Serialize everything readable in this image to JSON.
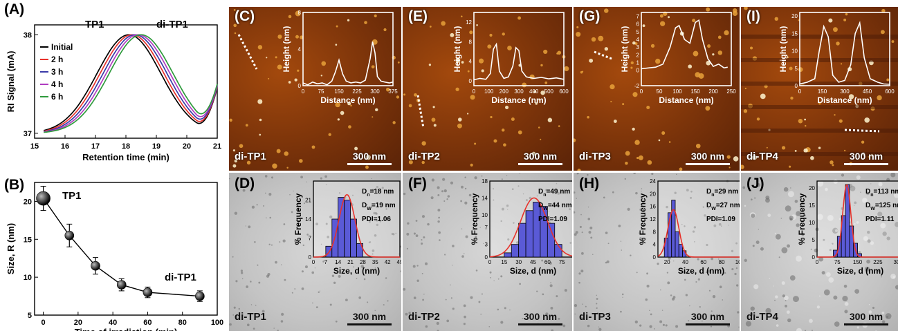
{
  "figure": {
    "panelA": {
      "label": "(A)",
      "title_left": "TP1",
      "title_right": "di-TP1",
      "ylabel": "RI Signal (mA)",
      "xlabel": "Retention time (min)",
      "xticks": [
        "15",
        "16",
        "17",
        "18",
        "19",
        "20",
        "21"
      ],
      "yticks": [
        "37",
        "38"
      ],
      "legend": [
        "Initial",
        "2 h",
        "3 h",
        "4 h",
        "6 h"
      ],
      "colors": [
        "#000000",
        "#e8322b",
        "#3a3aa8",
        "#b03cc0",
        "#2e9a3c"
      ]
    },
    "panelB": {
      "label": "(B)",
      "ylabel": "Size, R (nm)",
      "xlabel": "Time of irradiation (min)",
      "xticks": [
        "0",
        "20",
        "40",
        "60",
        "80",
        "100"
      ],
      "yticks": [
        "5",
        "10",
        "15",
        "20"
      ],
      "annot_top": "TP1",
      "annot_bottom": "di-TP1"
    },
    "afm": [
      {
        "label": "(C)",
        "sample": "di-TP1",
        "scale": "300 nm",
        "xticks": [
          "0",
          "75",
          "150",
          "225",
          "300",
          "375"
        ],
        "yticks": [
          "0",
          "4",
          "8"
        ],
        "xlabel": "Distance (nm)",
        "ylabel": "Height (nm)"
      },
      {
        "label": "(E)",
        "sample": "di-TP2",
        "scale": "300 nm",
        "xticks": [
          "0",
          "100",
          "200",
          "300",
          "400",
          "500",
          "600"
        ],
        "yticks": [
          "0",
          "4",
          "8",
          "12"
        ],
        "xlabel": "Distance (nm)",
        "ylabel": "Height (nm)"
      },
      {
        "label": "(G)",
        "sample": "di-TP3",
        "scale": "300 nm",
        "xticks": [
          "0",
          "50",
          "100",
          "150",
          "200",
          "250"
        ],
        "yticks": [
          "-2",
          "0",
          "1",
          "2",
          "3",
          "4",
          "5",
          "6",
          "7"
        ],
        "xlabel": "Distance (nm)",
        "ylabel": "Height (nm)"
      },
      {
        "label": "(I)",
        "sample": "di-TP4",
        "scale": "300 nm",
        "xticks": [
          "0",
          "150",
          "300",
          "450",
          "600"
        ],
        "yticks": [
          "0",
          "5",
          "10",
          "15",
          "20"
        ],
        "xlabel": "Distance (nm)",
        "ylabel": "Height (nm)"
      }
    ],
    "tem": [
      {
        "label": "(D)",
        "sample": "di-TP1",
        "scale": "300 nm",
        "dn": "D",
        "dn_sub": "n",
        "dn_val": "=18 nm",
        "dw": "D",
        "dw_sub": "W",
        "dw_val": "=19 nm",
        "pdi": "PDI=1.06",
        "xticks": [
          "0",
          "7",
          "14",
          "21",
          "28",
          "35",
          "42",
          "49"
        ],
        "yticks": [
          "0",
          "7",
          "14",
          "21"
        ],
        "xlabel": "Size, d (nm)",
        "ylabel": "% Frequency"
      },
      {
        "label": "(F)",
        "sample": "di-TP2",
        "scale": "300 nm",
        "dn": "D",
        "dn_sub": "n",
        "dn_val": "=49 nm",
        "dw": "D",
        "dw_sub": "W",
        "dw_val": "=44 nm",
        "pdi": "PDI=1.09",
        "xticks": [
          "0",
          "15",
          "30",
          "45",
          "60",
          "75",
          "90"
        ],
        "yticks": [
          "0",
          "3",
          "7",
          "10",
          "14",
          "18"
        ],
        "xlabel": "Size, d (nm)",
        "ylabel": "% Frequency"
      },
      {
        "label": "(H)",
        "sample": "di-TP3",
        "scale": "300 nm",
        "dn": "D",
        "dn_sub": "n",
        "dn_val": "=29 nm",
        "dw": "D",
        "dw_sub": "W",
        "dw_val": "=27 nm",
        "pdi": "PDI=1.09",
        "xticks": [
          "20",
          "40",
          "60",
          "80",
          "100"
        ],
        "yticks": [
          "0",
          "4",
          "8",
          "12",
          "16",
          "20",
          "24"
        ],
        "xlabel": "Size, d (nm)",
        "ylabel": "% Frequency"
      },
      {
        "label": "(J)",
        "sample": "di-TP4",
        "scale": "300 nm",
        "dn": "D",
        "dn_sub": "n",
        "dn_val": "=113 nm",
        "dw": "D",
        "dw_sub": "W",
        "dw_val": "=125 nm",
        "pdi": "PDI=1.11",
        "xticks": [
          "0",
          "75",
          "150",
          "225",
          "300"
        ],
        "yticks": [
          "0",
          "5",
          "10",
          "15",
          "20"
        ],
        "xlabel": "Size, d (nm)",
        "ylabel": "% Frequency"
      }
    ]
  },
  "chart_data": [
    {
      "type": "line",
      "xlabel": "Retention time (min)",
      "ylabel": "RI Signal (mA)",
      "xlim": [
        15,
        21
      ],
      "ylim": [
        36.95,
        38.1
      ],
      "series": [
        {
          "name": "Initial",
          "peak_x": 18.1
        },
        {
          "name": "2 h",
          "peak_x": 18.2
        },
        {
          "name": "3 h",
          "peak_x": 18.3
        },
        {
          "name": "4 h",
          "peak_x": 18.4
        },
        {
          "name": "6 h",
          "peak_x": 18.5
        }
      ]
    },
    {
      "type": "line",
      "xlabel": "Time of irradiation (min)",
      "ylabel": "Size, R (nm)",
      "xlim": [
        -5,
        100
      ],
      "ylim": [
        5,
        22.5
      ],
      "x": [
        0,
        15,
        30,
        45,
        60,
        90
      ],
      "values": [
        20.4,
        15.5,
        11.5,
        9.0,
        8.0,
        7.5
      ],
      "errors": [
        1.6,
        1.5,
        1.1,
        0.8,
        0.7,
        0.7
      ]
    },
    {
      "type": "line",
      "xlabel": "Distance (nm)",
      "ylabel": "Height (nm)",
      "xlim": [
        0,
        375
      ],
      "ylim": [
        0,
        8
      ],
      "x": [
        0,
        20,
        40,
        60,
        80,
        100,
        120,
        135,
        150,
        165,
        180,
        200,
        220,
        240,
        260,
        280,
        290,
        300,
        310,
        325,
        340,
        360,
        375
      ],
      "values": [
        0.3,
        0.1,
        0.4,
        0.2,
        0.3,
        0.1,
        0.5,
        1.5,
        2.8,
        1.3,
        0.5,
        0.3,
        0.4,
        0.3,
        0.6,
        3.0,
        4.8,
        3.6,
        1.0,
        0.5,
        0.4,
        0.3,
        0.4
      ]
    },
    {
      "type": "line",
      "xlabel": "Distance (nm)",
      "ylabel": "Height (nm)",
      "xlim": [
        0,
        600
      ],
      "ylim": [
        -1,
        14
      ],
      "x": [
        0,
        40,
        80,
        110,
        130,
        150,
        170,
        200,
        230,
        260,
        280,
        300,
        320,
        350,
        400,
        450,
        500,
        550,
        600
      ],
      "values": [
        0.2,
        0.5,
        0.3,
        1.5,
        6.5,
        7.5,
        2.0,
        0.5,
        0.8,
        3.0,
        6.8,
        6.2,
        2.0,
        0.8,
        0.5,
        0.7,
        0.4,
        0.6,
        0.3
      ]
    },
    {
      "type": "line",
      "xlabel": "Distance (nm)",
      "ylabel": "Height (nm)",
      "xlim": [
        0,
        250
      ],
      "ylim": [
        -2,
        7.5
      ],
      "x": [
        0,
        20,
        40,
        60,
        80,
        95,
        105,
        120,
        135,
        150,
        160,
        170,
        185,
        200,
        215,
        230,
        240
      ],
      "values": [
        0.2,
        0.3,
        0.4,
        0.8,
        3.0,
        5.5,
        5.8,
        4.0,
        3.5,
        6.2,
        6.5,
        4.0,
        1.5,
        0.5,
        0.8,
        0.3,
        0.4
      ]
    },
    {
      "type": "line",
      "xlabel": "Distance (nm)",
      "ylabel": "Height (nm)",
      "xlim": [
        0,
        600
      ],
      "ylim": [
        0,
        21
      ],
      "x": [
        0,
        50,
        100,
        130,
        160,
        190,
        220,
        260,
        300,
        340,
        370,
        400,
        430,
        470,
        520,
        560,
        600
      ],
      "values": [
        0.5,
        1.0,
        2.0,
        10.0,
        17.0,
        14.0,
        3.0,
        1.0,
        1.5,
        6.0,
        15.0,
        18.0,
        8.0,
        2.0,
        1.0,
        0.5,
        0.4
      ]
    },
    {
      "type": "bar",
      "xlabel": "Size, d (nm)",
      "ylabel": "% Frequency",
      "xlim": [
        0,
        49
      ],
      "ylim": [
        0,
        28
      ],
      "bin_edges": [
        7,
        10.5,
        14,
        17.5,
        21,
        24.5,
        28
      ],
      "values": [
        4,
        14,
        22,
        21,
        14,
        5
      ],
      "fit_center": 19,
      "fit_sigma": 4.5,
      "fit_peak": 23
    },
    {
      "type": "bar",
      "xlabel": "Size, d (nm)",
      "ylabel": "% Frequency",
      "xlim": [
        0,
        90
      ],
      "ylim": [
        0,
        18
      ],
      "bin_edges": [
        15,
        22.5,
        30,
        37.5,
        45,
        52.5,
        60,
        67.5,
        75
      ],
      "values": [
        1,
        3,
        8,
        11,
        13,
        12,
        8,
        3
      ],
      "fit_center": 46,
      "fit_sigma": 14,
      "fit_peak": 14
    },
    {
      "type": "bar",
      "xlabel": "Size, d (nm)",
      "ylabel": "% Frequency",
      "xlim": [
        10,
        105
      ],
      "ylim": [
        0,
        24
      ],
      "bin_edges": [
        17,
        21,
        25,
        29,
        33,
        37,
        41
      ],
      "values": [
        6,
        14,
        18,
        8,
        4,
        2
      ],
      "fit_center": 27,
      "fit_sigma": 6,
      "fit_peak": 15
    },
    {
      "type": "bar",
      "xlabel": "Size, d (nm)",
      "ylabel": "% Frequency",
      "xlim": [
        0,
        320
      ],
      "ylim": [
        0,
        22
      ],
      "bin_edges": [
        60,
        75,
        90,
        105,
        120,
        135,
        150,
        165
      ],
      "values": [
        2,
        6,
        12,
        21,
        9,
        4,
        1
      ],
      "fit_center": 110,
      "fit_sigma": 15,
      "fit_peak": 21
    }
  ]
}
